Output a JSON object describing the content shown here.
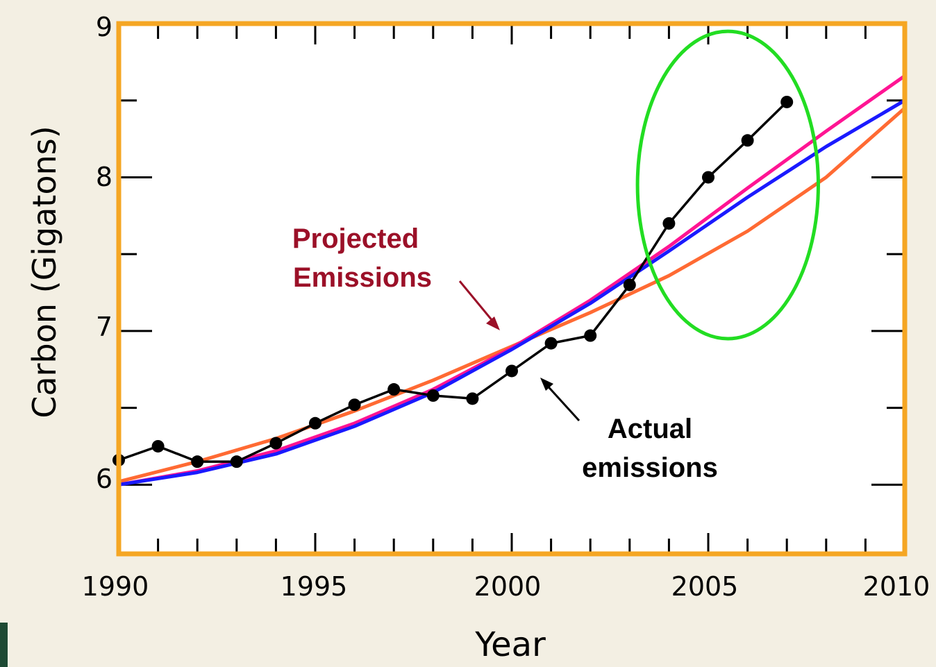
{
  "chart_data": {
    "type": "line",
    "title": "",
    "xlabel": "Year",
    "ylabel": "Carbon (Gigatons)",
    "xlim": [
      1990,
      2010
    ],
    "ylim": [
      5.55,
      9
    ],
    "x_ticks": [
      "1990",
      "1995",
      "2000",
      "2005",
      "2010"
    ],
    "y_ticks": [
      "6",
      "7",
      "8",
      "9"
    ],
    "grid": false,
    "series": [
      {
        "name": "Actual emissions",
        "color": "#000000",
        "marker": "circle",
        "x": [
          1990,
          1991,
          1992,
          1993,
          1994,
          1995,
          1996,
          1997,
          1998,
          1999,
          2000,
          2001,
          2002,
          2003,
          2004,
          2005,
          2006,
          2007
        ],
        "y": [
          6.16,
          6.25,
          6.15,
          6.15,
          6.27,
          6.4,
          6.52,
          6.62,
          6.58,
          6.56,
          6.74,
          6.92,
          6.97,
          7.3,
          7.7,
          8.0,
          8.24,
          8.49
        ]
      },
      {
        "name": "",
        "color": "#ff6a33",
        "x": [
          1990,
          1992,
          1994,
          1996,
          1998,
          2000,
          2002,
          2004,
          2006,
          2008,
          2010
        ],
        "y": [
          6.02,
          6.15,
          6.3,
          6.48,
          6.68,
          6.9,
          7.12,
          7.36,
          7.65,
          8.0,
          8.45
        ]
      },
      {
        "name": "",
        "color": "#ff1493",
        "x": [
          1990,
          1992,
          1994,
          1996,
          1998,
          2000,
          2002,
          2004,
          2006,
          2008,
          2010
        ],
        "y": [
          6.0,
          6.09,
          6.22,
          6.4,
          6.62,
          6.89,
          7.2,
          7.55,
          7.93,
          8.3,
          8.66
        ]
      },
      {
        "name": "",
        "color": "#1a1aff",
        "x": [
          1990,
          1992,
          1994,
          1996,
          1998,
          2000,
          2002,
          2004,
          2006,
          2008,
          2010
        ],
        "y": [
          6.0,
          6.08,
          6.2,
          6.38,
          6.6,
          6.88,
          7.18,
          7.52,
          7.87,
          8.2,
          8.5
        ]
      }
    ],
    "annotations": [
      {
        "text": "Projected",
        "color": "#9b1028"
      },
      {
        "text": "Emissions",
        "color": "#9b1028"
      },
      {
        "text": "Actual",
        "color": "#000000"
      },
      {
        "text": "emissions",
        "color": "#000000"
      }
    ],
    "highlight_ellipse": {
      "color": "#22dd22",
      "x_center": 2005.5,
      "y_center": 7.95,
      "x_radius": 2.3,
      "y_radius": 1.0
    },
    "frame_color": "#f5a623",
    "background": "#ffffff",
    "page_background": "#f3efe3"
  }
}
